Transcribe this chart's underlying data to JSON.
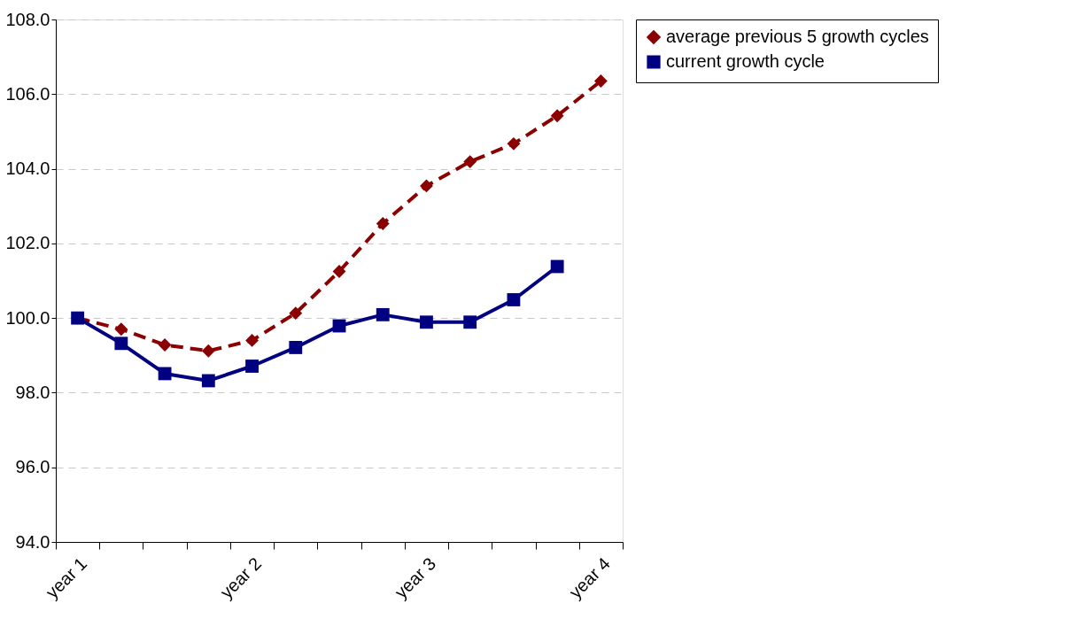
{
  "chart_data": {
    "type": "line",
    "categories": [
      "year 1",
      null,
      null,
      null,
      "year 2",
      null,
      null,
      null,
      "year 3",
      null,
      null,
      null,
      "year 4"
    ],
    "series": [
      {
        "name": "average previous 5 growth cycles",
        "color": "#8b0000",
        "marker": "diamond",
        "line_style": "dashed",
        "values": [
          100,
          99.7,
          99.28,
          99.12,
          99.4,
          100.13,
          101.25,
          102.53,
          103.54,
          104.19,
          104.67,
          105.42,
          106.35
        ]
      },
      {
        "name": "current growth cycle",
        "color": "#000080",
        "marker": "square",
        "line_style": "solid",
        "values": [
          100,
          99.32,
          98.51,
          98.32,
          98.71,
          99.21,
          99.79,
          100.09,
          99.89,
          99.89,
          100.49,
          101.38,
          null
        ]
      }
    ],
    "ylim": [
      94,
      108
    ],
    "yticks": [
      {
        "value": 94,
        "label": "94.0"
      },
      {
        "value": 96,
        "label": "96.0"
      },
      {
        "value": 98,
        "label": "98.0"
      },
      {
        "value": 100,
        "label": "100.0"
      },
      {
        "value": 102,
        "label": "102.0"
      },
      {
        "value": 104,
        "label": "104.0"
      },
      {
        "value": 106,
        "label": "106.0"
      },
      {
        "value": 108,
        "label": "108.0"
      }
    ],
    "grid": "y",
    "legend": "right"
  }
}
